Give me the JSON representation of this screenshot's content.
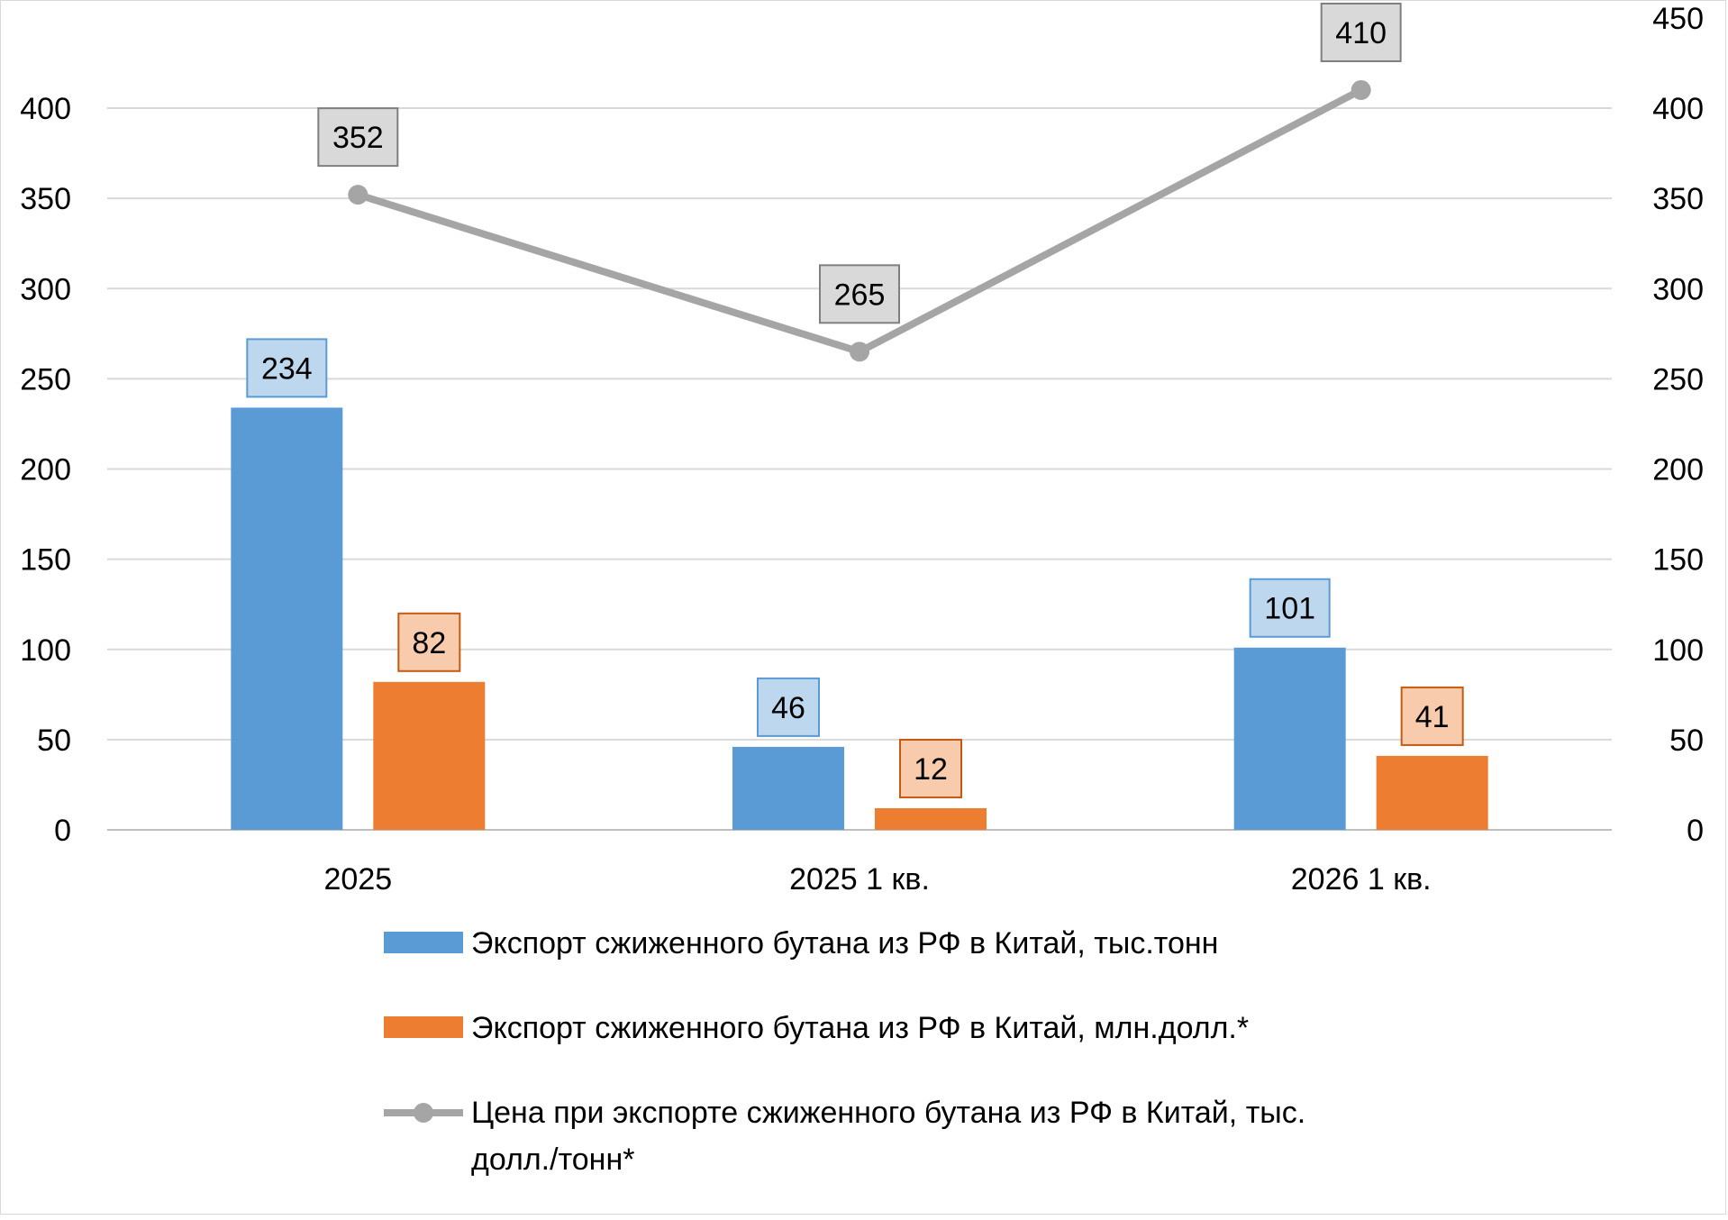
{
  "chart_data": {
    "type": "bar",
    "categories": [
      "2025",
      "2025 1 кв.",
      "2026 1 кв."
    ],
    "y_left": {
      "ylim": [
        0,
        400
      ],
      "ticks": [
        "0",
        "50",
        "100",
        "150",
        "200",
        "250",
        "300",
        "350",
        "400"
      ]
    },
    "y_right": {
      "ylim": [
        0,
        450
      ],
      "ticks": [
        "0",
        "50",
        "100",
        "150",
        "200",
        "250",
        "300",
        "350",
        "400",
        "450"
      ]
    },
    "grid": true,
    "legend_position": "bottom",
    "series": [
      {
        "name": "Экспорт сжиженного бутана из РФ в Китай, тыс.тонн",
        "kind": "bar",
        "axis": "left",
        "values": [
          234,
          46,
          101
        ],
        "labels": [
          "234",
          "46",
          "101"
        ],
        "color": "#5B9BD5",
        "label_fill": "#BDD7EE",
        "label_border": "#5B9BD5"
      },
      {
        "name": "Экспорт сжиженного бутана из РФ в Китай, млн.долл.*",
        "kind": "bar",
        "axis": "left",
        "values": [
          82,
          12,
          41
        ],
        "labels": [
          "82",
          "12",
          "41"
        ],
        "color": "#ED7D31",
        "label_fill": "#F8CBAD",
        "label_border": "#C55A11"
      },
      {
        "name": "Цена при экспорте сжиженного бутана из РФ в Китай, тыс. долл./тонн*",
        "name_lines": [
          "Цена при экспорте сжиженного бутана из РФ в Китай, тыс.",
          "долл./тонн*"
        ],
        "kind": "line",
        "axis": "right",
        "values": [
          352,
          265,
          410
        ],
        "labels": [
          "352",
          "265",
          "410"
        ],
        "color": "#A5A5A5",
        "label_fill": "#D9D9D9",
        "label_border": "#7F7F7F"
      }
    ]
  }
}
